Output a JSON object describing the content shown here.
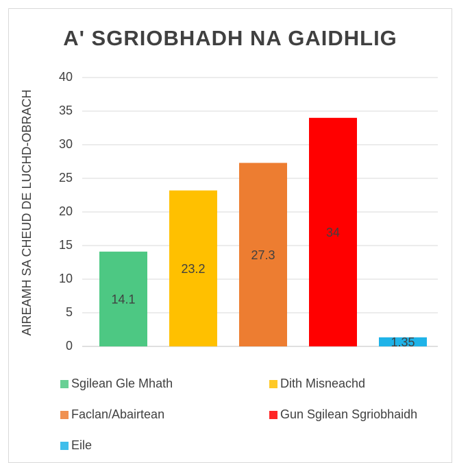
{
  "chart_data": {
    "type": "bar",
    "title": "A' SGRIOBHADH NA GAIDHLIG",
    "y_label": "AIREAMH SA CHEUD DE LUCHD-OBRACH",
    "categories": [
      "Sgilean Gle Mhath",
      "Dith Misneachd",
      "Faclan/Abairtean",
      "Gun Sgilean Sgriobhaidh",
      "Eile"
    ],
    "values": [
      14.1,
      23.2,
      27.3,
      34,
      1.35
    ],
    "colors": [
      "#4DC883",
      "#FFC000",
      "#ED7D31",
      "#FF0000",
      "#1FB3E8"
    ],
    "ylim": [
      0,
      40
    ],
    "yticks": [
      0,
      5,
      10,
      15,
      20,
      25,
      30,
      35,
      40
    ],
    "grid": true,
    "legend": "bottom"
  }
}
